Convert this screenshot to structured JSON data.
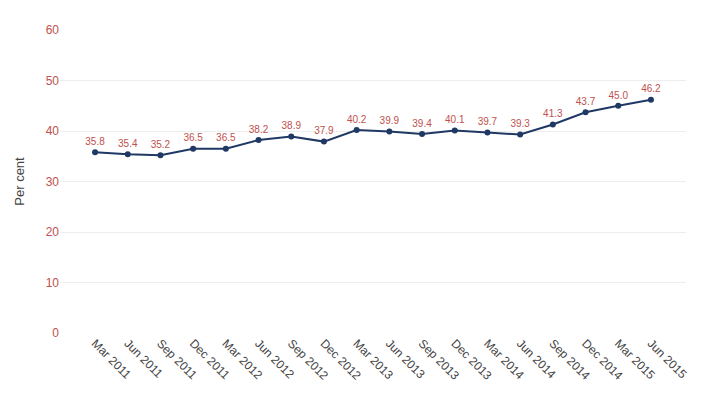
{
  "chart_data": {
    "type": "line",
    "categories": [
      "Mar 2011",
      "Jun 2011",
      "Sep 2011",
      "Dec 2011",
      "Mar 2012",
      "Jun 2012",
      "Sep 2012",
      "Dec 2012",
      "Mar 2013",
      "Jun 2013",
      "Sep 2013",
      "Dec 2013",
      "Mar 2014",
      "Jun 2014",
      "Sep 2014",
      "Dec 2014",
      "Mar 2015",
      "Jun 2015"
    ],
    "values": [
      35.8,
      35.4,
      35.2,
      36.5,
      36.5,
      38.2,
      38.9,
      37.9,
      40.2,
      39.9,
      39.4,
      40.1,
      39.7,
      39.3,
      41.3,
      43.7,
      45.0,
      46.2
    ],
    "value_labels": [
      "35.8",
      "35.4",
      "35.2",
      "36.5",
      "36.5",
      "38.2",
      "38.9",
      "37.9",
      "40.2",
      "39.9",
      "39.4",
      "40.1",
      "39.7",
      "39.3",
      "41.3",
      "43.7",
      "45.0",
      "46.2"
    ],
    "ylabel": "Per cent",
    "ylim": [
      0,
      60
    ],
    "yticks": [
      0,
      10,
      20,
      30,
      40,
      50,
      60
    ],
    "color": "#1f3864",
    "marker": "circle",
    "grid": true,
    "data_labels": true
  }
}
